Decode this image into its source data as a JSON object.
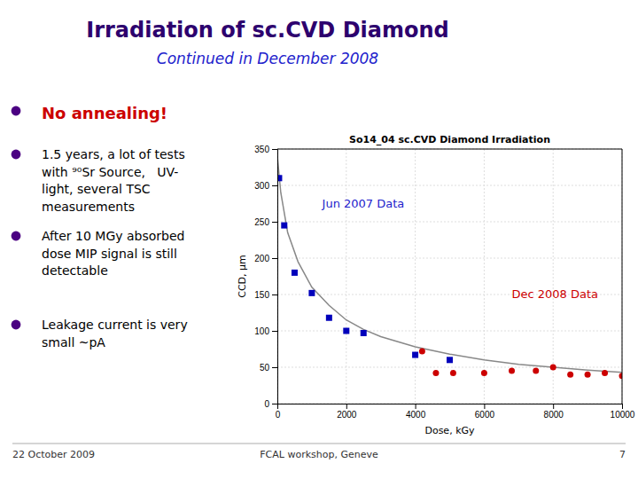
{
  "title": "Irradiation of sc.CVD Diamond",
  "subtitle": "Continued in December 2008",
  "title_color": "#2d006e",
  "subtitle_color": "#2222cc",
  "bullet_color": "#4b0082",
  "notes": [
    {
      "text": "No annealing!",
      "color": "#cc0000"
    },
    {
      "text": "1.5 years, a lot of tests\nwith ⁹⁰Sr Source,   UV-\nlight, several TSC\nmeasurements",
      "color": "#000000"
    },
    {
      "text": "After 10 MGy absorbed\ndose MIP signal is still\ndetectable",
      "color": "#000000"
    },
    {
      "text": "Leakage current is very\nsmall ~pA",
      "color": "#000000"
    }
  ],
  "footer": [
    "22 October 2009",
    "FCAL workshop, Geneve",
    "7"
  ],
  "chart_data": {
    "type": "scatter",
    "title": "So14_04 sc.CVD Diamond Irradiation",
    "x_label": "Dose, kGy",
    "y_label": "CCD, μm",
    "xlim": [
      0,
      10000
    ],
    "ylim": [
      0,
      350
    ],
    "xticks": [
      0,
      2000,
      4000,
      6000,
      8000,
      10000
    ],
    "yticks": [
      0,
      50,
      100,
      150,
      200,
      250,
      300,
      350
    ],
    "grid": true,
    "series": [
      {
        "type": "line",
        "color": "#888888",
        "line_style": "solid",
        "x": [
          0,
          100,
          300,
          600,
          1000,
          1500,
          2000,
          2500,
          3000,
          4000,
          5000,
          6000,
          7000,
          8000,
          9000,
          10000
        ],
        "values": [
          340,
          290,
          235,
          195,
          160,
          135,
          115,
          102,
          92,
          78,
          68,
          60,
          54,
          50,
          46,
          43
        ]
      },
      {
        "type": "scatter",
        "color": "#0000bb",
        "marker": "square",
        "x": [
          50,
          200,
          500,
          1000,
          1500,
          2000,
          2500,
          4000,
          5000
        ],
        "values": [
          310,
          245,
          180,
          152,
          118,
          100,
          97,
          67,
          60
        ]
      },
      {
        "type": "scatter",
        "color": "#cc0000",
        "marker": "circle",
        "x": [
          4200,
          4600,
          5100,
          6000,
          6800,
          7500,
          8000,
          8500,
          9000,
          9500,
          10000
        ],
        "values": [
          72,
          42,
          42,
          42,
          45,
          45,
          50,
          40,
          40,
          42,
          38
        ]
      }
    ],
    "annotations": [
      {
        "text": "Jun 2007 Data",
        "x": 1300,
        "y": 270,
        "color": "#2222cc"
      },
      {
        "text": "Dec 2008 Data",
        "x": 6800,
        "y": 145,
        "color": "#cc0000"
      }
    ]
  }
}
